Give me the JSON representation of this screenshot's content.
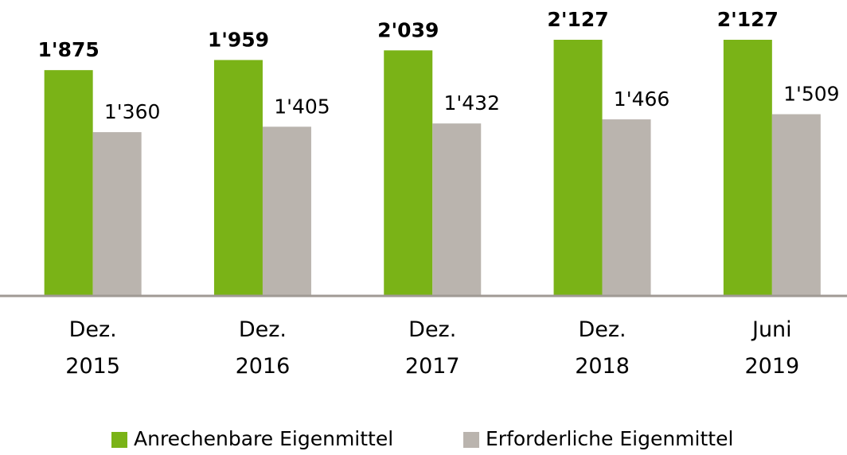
{
  "chart_data": {
    "type": "bar",
    "categories": [
      "Dez. 2015",
      "Dez. 2016",
      "Dez. 2017",
      "Dez. 2018",
      "Juni 2019"
    ],
    "series": [
      {
        "name": "Anrechenbare Eigenmittel",
        "color": "#7ab317",
        "values": [
          1875,
          1959,
          2039,
          2127,
          2127
        ],
        "value_labels": [
          "1'875",
          "1'959",
          "2'039",
          "2'127",
          "2'127"
        ]
      },
      {
        "name": "Erforderliche Eigenmittel",
        "color": "#bab4ae",
        "values": [
          1360,
          1405,
          1432,
          1466,
          1509
        ],
        "value_labels": [
          "1'360",
          "1'405",
          "1'432",
          "1'466",
          "1'509"
        ]
      }
    ]
  }
}
